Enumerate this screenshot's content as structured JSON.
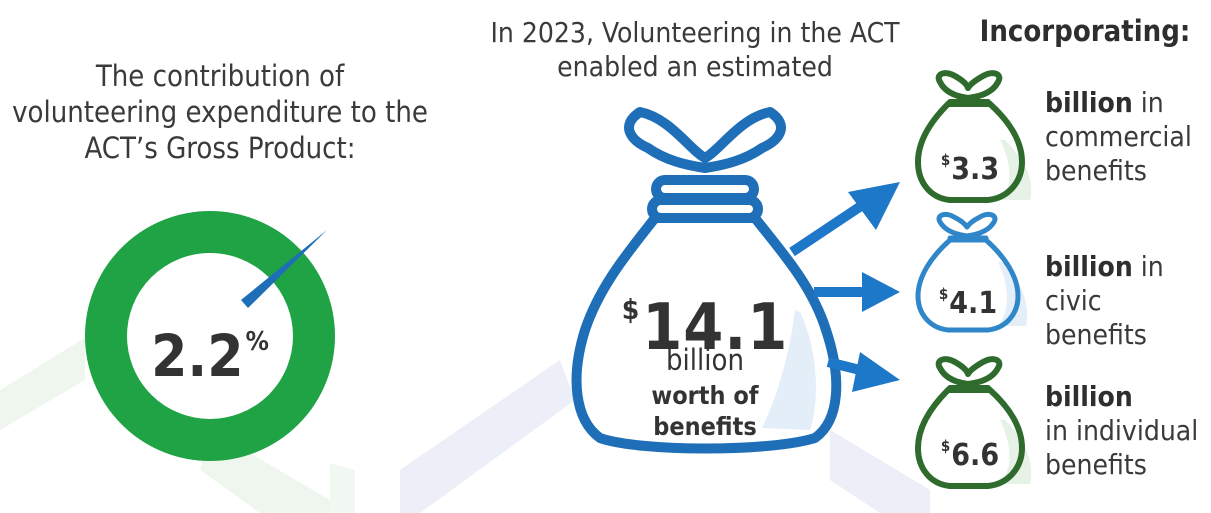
{
  "left": {
    "heading": "The contribution of volunteering expenditure to the ACT’s Gross Product:",
    "percent_value": "2.2",
    "percent_symbol": "%",
    "percent_fraction": 0.022
  },
  "center": {
    "heading": "In 2023, Volunteering in the ACT enabled an estimated",
    "currency_symbol": "$",
    "amount": "14.1",
    "unit": "billion",
    "description": "worth of benefits"
  },
  "right": {
    "heading": "Incorporating:",
    "items": [
      {
        "currency_symbol": "$",
        "amount": "3.3",
        "bold": "billion",
        "rest1": " in",
        "rest2": "commercial",
        "rest3": "benefits",
        "color": "#2e6b2c"
      },
      {
        "currency_symbol": "$",
        "amount": "4.1",
        "bold": "billion",
        "rest1": " in",
        "rest2": "civic benefits",
        "rest3": "",
        "color": "#2f86c8"
      },
      {
        "currency_symbol": "$",
        "amount": "6.6",
        "bold": "billion",
        "rest1": "",
        "rest2": "in individual",
        "rest3": "benefits",
        "color": "#2e6b2c"
      }
    ]
  },
  "colors": {
    "green": "#1fa345",
    "dark_green": "#2e6b2c",
    "blue": "#1f6fb8",
    "arrow_blue": "#1e78c8",
    "text": "#333333"
  },
  "icons": {
    "main_bag": "money-bag-icon",
    "arrows": "arrow-right-icon",
    "donut": "donut-chart-icon"
  }
}
